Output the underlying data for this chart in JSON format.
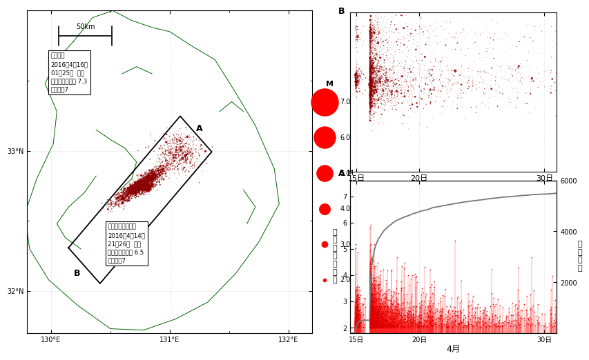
{
  "map_lon_min": 129.8,
  "map_lon_max": 132.2,
  "map_lat_min": 31.7,
  "map_lat_max": 34.0,
  "map_xlabel_ticks": [
    130,
    131,
    132
  ],
  "map_ylabel_ticks": [
    32,
    33
  ],
  "coastline_color": "#006600",
  "eq_color": "#8B0000",
  "eq_color_bright": "#ff0000",
  "bg_color": "#ffffff",
  "grid_color": "#cccccc",
  "main_eq_lon": 130.76,
  "main_eq_lat": 32.755,
  "main_eq_mag": 7.3,
  "foreshock_lon": 130.81,
  "foreshock_lat": 32.735,
  "foreshock_mag": 6.5,
  "legend_mags": [
    7.0,
    6.0,
    5.0,
    4.0,
    3.0,
    2.0
  ],
  "time_xlim": [
    14.5,
    31.0
  ],
  "time_xticks": [
    15,
    20,
    30
  ],
  "time_xtick_labels": [
    "15日",
    "20日",
    "30日"
  ],
  "mag_ylim": [
    1.8,
    7.6
  ],
  "mag_yticks": [
    2,
    3,
    4,
    5,
    6,
    7
  ],
  "cum_ylim": [
    0,
    6000
  ],
  "cum_yticks": [
    2000,
    4000,
    6000
  ],
  "xlabel_bottom": "4月",
  "A_lon": 131.22,
  "A_lat": 33.12,
  "B_lon": 130.28,
  "B_lat": 32.18
}
